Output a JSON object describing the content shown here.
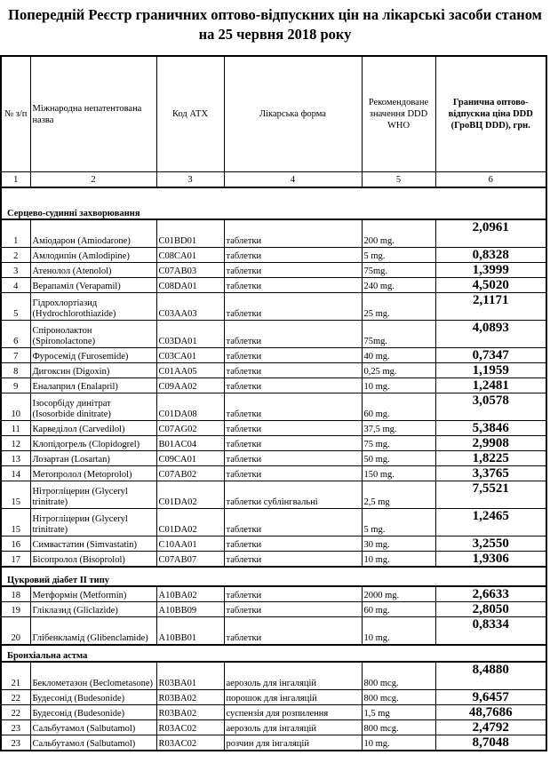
{
  "title": "Попередній Реєстр граничних оптово-відпускних цін на лікарські засоби станом на 25 червня 2018 року",
  "headers": [
    "№ з/п",
    "Міжнародна непатентована назва",
    "Код АТХ",
    "Лікарська форма",
    "Рекомендоване значення DDD WHO",
    "Гранична оптово-відпускна ціна  DDD (ГроВЦ DDD), грн."
  ],
  "column_numbers": [
    "1",
    "2",
    "3",
    "4",
    "5",
    "6"
  ],
  "sections": [
    {
      "title": "Серцево-судинні захворювання",
      "rows": [
        {
          "n": "1",
          "name": "Аміодарон (Amiodarone)",
          "atc": "C01BD01",
          "form": "таблетки",
          "ddd": "200 mg.",
          "price": "2,0961"
        },
        {
          "n": "2",
          "name": "Амлодипін (Amlodipine)",
          "atc": "C08CA01",
          "form": "таблетки",
          "ddd": "5 mg.",
          "price": "0,8328"
        },
        {
          "n": "3",
          "name": "Атенолол (Atenolol)",
          "atc": "C07AB03",
          "form": "таблетки",
          "ddd": "75mg.",
          "price": "1,3999"
        },
        {
          "n": "4",
          "name": "Верапаміл (Verapamil)",
          "atc": "C08DA01",
          "form": "таблетки",
          "ddd": "240 mg.",
          "price": "4,5020"
        },
        {
          "n": "5",
          "name": "Гідрохлортіазид (Hydrochlorothiazide)",
          "atc": "C03AA03",
          "form": "таблетки",
          "ddd": "25 mg.",
          "price": "2,1171"
        },
        {
          "n": "6",
          "name": "Спіронолактон (Spironolactone)",
          "atc": "C03DA01",
          "form": "таблетки",
          "ddd": "75mg.",
          "price": "4,0893"
        },
        {
          "n": "7",
          "name": "Фуросемід (Furosemide)",
          "atc": "C03CA01",
          "form": "таблетки",
          "ddd": "40 mg.",
          "price": "0,7347"
        },
        {
          "n": "8",
          "name": "Дигоксин (Digoxin)",
          "atc": "C01AA05",
          "form": "таблетки",
          "ddd": "0,25 mg.",
          "price": "1,1959"
        },
        {
          "n": "9",
          "name": "Еналаприл (Enalapril)",
          "atc": "C09AA02",
          "form": "таблетки",
          "ddd": "10 mg.",
          "price": "1,2481"
        },
        {
          "n": "10",
          "name": "Ізосорбіду динітрат (Isosorbide dinitrate)",
          "atc": "C01DA08",
          "form": "таблетки",
          "ddd": "60 mg.",
          "price": "3,0578"
        },
        {
          "n": "11",
          "name": "Карведілол (Carvedilol)",
          "atc": "C07AG02",
          "form": "таблетки",
          "ddd": "37,5 mg.",
          "price": "5,3846"
        },
        {
          "n": "12",
          "name": "Клопідогрель (Clopidogrel)",
          "atc": "B01AC04",
          "form": "таблетки",
          "ddd": "75 mg.",
          "price": "2,9908"
        },
        {
          "n": "13",
          "name": "Лозартан (Losartan)",
          "atc": "C09CA01",
          "form": "таблетки",
          "ddd": "50 mg.",
          "price": "1,8225"
        },
        {
          "n": "14",
          "name": "Метопролол (Metoprolol)",
          "atc": "C07AB02",
          "form": "таблетки",
          "ddd": "150 mg.",
          "price": "3,3765"
        },
        {
          "n": "15",
          "name": "Нітрогліцерин (Glyceryl trinitrate)",
          "atc": "C01DA02",
          "form": "таблетки сублінгвальні",
          "ddd": "2,5 mg",
          "price": "7,5521"
        },
        {
          "n": "15",
          "name": "Нітрогліцерин (Glyceryl trinitrate)",
          "atc": "C01DA02",
          "form": "таблетки",
          "ddd": "5 mg.",
          "price": "1,2465"
        },
        {
          "n": "16",
          "name": "Симвастатин (Simvastatin)",
          "atc": "C10AA01",
          "form": "таблетки",
          "ddd": "30 mg.",
          "price": "3,2550"
        },
        {
          "n": "17",
          "name": "Бісопролол (Bisoprolol)",
          "atc": "C07AB07",
          "form": "таблетки",
          "ddd": "10 mg.",
          "price": "1,9306"
        }
      ]
    },
    {
      "title": "Цукровий діабет II типу",
      "rows": [
        {
          "n": "18",
          "name": "Метформін (Metformin)",
          "atc": "A10BA02",
          "form": "таблетки",
          "ddd": "2000 mg.",
          "price": "2,6633"
        },
        {
          "n": "19",
          "name": "Гліклазид (Gliclazide)",
          "atc": "A10BB09",
          "form": "таблетки",
          "ddd": "60 mg.",
          "price": "2,8050"
        },
        {
          "n": "20",
          "name": "Глібенкламід (Glibenclamide)",
          "atc": "A10BB01",
          "form": "таблетки",
          "ddd": "10 mg.",
          "price": "0,8334"
        }
      ]
    },
    {
      "title": "Бронхіальна астма",
      "rows": [
        {
          "n": "21",
          "name": "Беклометазон (Beclometasone)",
          "atc": "R03BA01",
          "form": "аерозоль для інгаляцій",
          "ddd": "800 mcg.",
          "price": "8,4880"
        },
        {
          "n": "22",
          "name": "Будесонід (Budesonide)",
          "atc": "R03BA02",
          "form": "порошок для інгаляцій",
          "ddd": "800 mcg.",
          "price": "9,6457"
        },
        {
          "n": "22",
          "name": "Будесонід (Budesonide)",
          "atc": "R03BA02",
          "form": "суспензія для розпилення",
          "ddd": "1,5 mg",
          "price": "48,7686"
        },
        {
          "n": "23",
          "name": "Сальбутамол (Salbutamol)",
          "atc": "R03AC02",
          "form": "аерозоль для інгаляцій",
          "ddd": "800 mcg.",
          "price": "2,4792"
        },
        {
          "n": "23",
          "name": "Сальбутамол (Salbutamol)",
          "atc": "R03AC02",
          "form": "розчин для інгаляцій",
          "ddd": "10 mg.",
          "price": "8,7048"
        }
      ]
    }
  ]
}
